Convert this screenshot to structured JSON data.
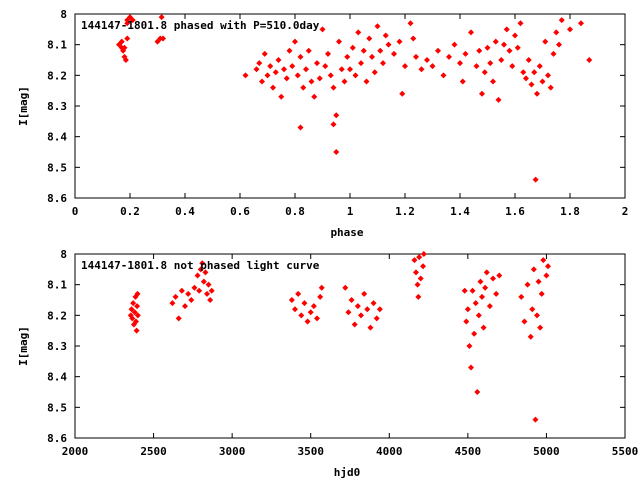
{
  "chart_data": [
    {
      "type": "scatter",
      "title": "144147-1801.8 phased with P=510.0day",
      "xlabel": "phase",
      "ylabel": "I[mag]",
      "xlim": [
        0,
        2
      ],
      "ylim": [
        8.6,
        8.0
      ],
      "y_inverted": true,
      "xticks": [
        "0",
        "0.2",
        "0.4",
        "0.6",
        "0.8",
        "1",
        "1.2",
        "1.4",
        "1.6",
        "1.8",
        "2"
      ],
      "yticks": [
        "8",
        "8.1",
        "8.2",
        "8.3",
        "8.4",
        "8.5",
        "8.6"
      ],
      "marker_color": "#ff0000",
      "grid": false,
      "series": [
        {
          "points": [
            [
              0.16,
              8.1
            ],
            [
              0.17,
              8.09
            ],
            [
              0.175,
              8.12
            ],
            [
              0.18,
              8.14
            ],
            [
              0.185,
              8.15
            ],
            [
              0.18,
              8.11
            ],
            [
              0.19,
              8.03
            ],
            [
              0.19,
              8.02
            ],
            [
              0.2,
              8.01
            ],
            [
              0.21,
              8.02
            ],
            [
              0.19,
              8.08
            ],
            [
              0.17,
              8.11
            ],
            [
              0.3,
              8.09
            ],
            [
              0.31,
              8.08
            ],
            [
              0.32,
              8.08
            ],
            [
              0.315,
              8.01
            ],
            [
              0.62,
              8.2
            ],
            [
              0.66,
              8.18
            ],
            [
              0.67,
              8.16
            ],
            [
              0.68,
              8.22
            ],
            [
              0.69,
              8.13
            ],
            [
              0.7,
              8.2
            ],
            [
              0.71,
              8.17
            ],
            [
              0.72,
              8.24
            ],
            [
              0.73,
              8.19
            ],
            [
              0.74,
              8.15
            ],
            [
              0.75,
              8.27
            ],
            [
              0.76,
              8.18
            ],
            [
              0.77,
              8.21
            ],
            [
              0.78,
              8.12
            ],
            [
              0.79,
              8.17
            ],
            [
              0.8,
              8.09
            ],
            [
              0.81,
              8.2
            ],
            [
              0.82,
              8.14
            ],
            [
              0.82,
              8.37
            ],
            [
              0.83,
              8.24
            ],
            [
              0.84,
              8.18
            ],
            [
              0.85,
              8.12
            ],
            [
              0.86,
              8.22
            ],
            [
              0.87,
              8.27
            ],
            [
              0.88,
              8.16
            ],
            [
              0.89,
              8.21
            ],
            [
              0.9,
              8.05
            ],
            [
              0.91,
              8.17
            ],
            [
              0.92,
              8.13
            ],
            [
              0.93,
              8.2
            ],
            [
              0.94,
              8.24
            ],
            [
              0.94,
              8.36
            ],
            [
              0.95,
              8.33
            ],
            [
              0.95,
              8.45
            ],
            [
              0.96,
              8.09
            ],
            [
              0.97,
              8.18
            ],
            [
              0.98,
              8.22
            ],
            [
              0.99,
              8.14
            ],
            [
              1.0,
              8.18
            ],
            [
              1.01,
              8.11
            ],
            [
              1.02,
              8.2
            ],
            [
              1.03,
              8.06
            ],
            [
              1.04,
              8.16
            ],
            [
              1.05,
              8.12
            ],
            [
              1.06,
              8.22
            ],
            [
              1.07,
              8.08
            ],
            [
              1.08,
              8.14
            ],
            [
              1.09,
              8.19
            ],
            [
              1.1,
              8.04
            ],
            [
              1.11,
              8.12
            ],
            [
              1.12,
              8.16
            ],
            [
              1.13,
              8.07
            ],
            [
              1.14,
              8.1
            ],
            [
              1.16,
              8.13
            ],
            [
              1.18,
              8.09
            ],
            [
              1.19,
              8.26
            ],
            [
              1.2,
              8.17
            ],
            [
              1.22,
              8.03
            ],
            [
              1.23,
              8.08
            ],
            [
              1.24,
              8.14
            ],
            [
              1.26,
              8.18
            ],
            [
              1.28,
              8.15
            ],
            [
              1.3,
              8.17
            ],
            [
              1.32,
              8.12
            ],
            [
              1.34,
              8.2
            ],
            [
              1.36,
              8.14
            ],
            [
              1.38,
              8.1
            ],
            [
              1.4,
              8.16
            ],
            [
              1.41,
              8.22
            ],
            [
              1.42,
              8.13
            ],
            [
              1.44,
              8.06
            ],
            [
              1.46,
              8.17
            ],
            [
              1.47,
              8.12
            ],
            [
              1.48,
              8.26
            ],
            [
              1.49,
              8.19
            ],
            [
              1.5,
              8.11
            ],
            [
              1.51,
              8.16
            ],
            [
              1.52,
              8.22
            ],
            [
              1.53,
              8.09
            ],
            [
              1.54,
              8.28
            ],
            [
              1.55,
              8.15
            ],
            [
              1.56,
              8.1
            ],
            [
              1.57,
              8.05
            ],
            [
              1.58,
              8.12
            ],
            [
              1.59,
              8.17
            ],
            [
              1.6,
              8.07
            ],
            [
              1.61,
              8.11
            ],
            [
              1.62,
              8.03
            ],
            [
              1.63,
              8.19
            ],
            [
              1.64,
              8.21
            ],
            [
              1.65,
              8.15
            ],
            [
              1.66,
              8.23
            ],
            [
              1.67,
              8.19
            ],
            [
              1.675,
              8.54
            ],
            [
              1.68,
              8.26
            ],
            [
              1.69,
              8.17
            ],
            [
              1.7,
              8.22
            ],
            [
              1.71,
              8.09
            ],
            [
              1.72,
              8.2
            ],
            [
              1.73,
              8.24
            ],
            [
              1.74,
              8.13
            ],
            [
              1.75,
              8.06
            ],
            [
              1.76,
              8.1
            ],
            [
              1.77,
              8.02
            ],
            [
              1.8,
              8.05
            ],
            [
              1.84,
              8.03
            ],
            [
              1.87,
              8.15
            ]
          ]
        }
      ]
    },
    {
      "type": "scatter",
      "title": "144147-1801.8 not phased light curve",
      "xlabel": "hjd0",
      "ylabel": "I[mag]",
      "xlim": [
        2000,
        5500
      ],
      "ylim": [
        8.6,
        8.0
      ],
      "y_inverted": true,
      "xticks": [
        "2000",
        "2500",
        "3000",
        "3500",
        "4000",
        "4500",
        "5000",
        "5500"
      ],
      "yticks": [
        "8",
        "8.1",
        "8.2",
        "8.3",
        "8.4",
        "8.5",
        "8.6"
      ],
      "marker_color": "#ff0000",
      "grid": false,
      "series": [
        {
          "points": [
            [
              2355,
              8.2
            ],
            [
              2360,
              8.18
            ],
            [
              2365,
              8.21
            ],
            [
              2370,
              8.16
            ],
            [
              2375,
              8.23
            ],
            [
              2380,
              8.19
            ],
            [
              2385,
              8.14
            ],
            [
              2388,
              8.22
            ],
            [
              2392,
              8.25
            ],
            [
              2395,
              8.17
            ],
            [
              2398,
              8.13
            ],
            [
              2400,
              8.2
            ],
            [
              2620,
              8.16
            ],
            [
              2640,
              8.14
            ],
            [
              2660,
              8.21
            ],
            [
              2680,
              8.12
            ],
            [
              2700,
              8.17
            ],
            [
              2720,
              8.13
            ],
            [
              2740,
              8.15
            ],
            [
              2760,
              8.11
            ],
            [
              2780,
              8.07
            ],
            [
              2790,
              8.12
            ],
            [
              2800,
              8.05
            ],
            [
              2810,
              8.03
            ],
            [
              2820,
              8.09
            ],
            [
              2830,
              8.06
            ],
            [
              2840,
              8.13
            ],
            [
              2850,
              8.1
            ],
            [
              2860,
              8.15
            ],
            [
              2870,
              8.12
            ],
            [
              3380,
              8.15
            ],
            [
              3400,
              8.18
            ],
            [
              3420,
              8.13
            ],
            [
              3440,
              8.2
            ],
            [
              3460,
              8.16
            ],
            [
              3480,
              8.22
            ],
            [
              3500,
              8.19
            ],
            [
              3520,
              8.17
            ],
            [
              3540,
              8.21
            ],
            [
              3560,
              8.14
            ],
            [
              3570,
              8.11
            ],
            [
              3720,
              8.11
            ],
            [
              3740,
              8.19
            ],
            [
              3760,
              8.15
            ],
            [
              3780,
              8.23
            ],
            [
              3800,
              8.17
            ],
            [
              3820,
              8.2
            ],
            [
              3840,
              8.13
            ],
            [
              3860,
              8.18
            ],
            [
              3880,
              8.24
            ],
            [
              3900,
              8.16
            ],
            [
              3920,
              8.21
            ],
            [
              3940,
              8.18
            ],
            [
              4160,
              8.02
            ],
            [
              4170,
              8.06
            ],
            [
              4180,
              8.1
            ],
            [
              4185,
              8.14
            ],
            [
              4190,
              8.01
            ],
            [
              4200,
              8.08
            ],
            [
              4215,
              8.04
            ],
            [
              4220,
              8.0
            ],
            [
              4480,
              8.12
            ],
            [
              4490,
              8.22
            ],
            [
              4500,
              8.18
            ],
            [
              4510,
              8.3
            ],
            [
              4520,
              8.37
            ],
            [
              4530,
              8.12
            ],
            [
              4540,
              8.26
            ],
            [
              4550,
              8.16
            ],
            [
              4560,
              8.45
            ],
            [
              4570,
              8.2
            ],
            [
              4580,
              8.09
            ],
            [
              4590,
              8.14
            ],
            [
              4600,
              8.24
            ],
            [
              4610,
              8.11
            ],
            [
              4620,
              8.06
            ],
            [
              4640,
              8.17
            ],
            [
              4660,
              8.08
            ],
            [
              4680,
              8.13
            ],
            [
              4700,
              8.07
            ],
            [
              4840,
              8.14
            ],
            [
              4860,
              8.22
            ],
            [
              4880,
              8.1
            ],
            [
              4900,
              8.27
            ],
            [
              4910,
              8.18
            ],
            [
              4920,
              8.05
            ],
            [
              4930,
              8.54
            ],
            [
              4940,
              8.2
            ],
            [
              4950,
              8.09
            ],
            [
              4960,
              8.24
            ],
            [
              4970,
              8.13
            ],
            [
              4980,
              8.02
            ],
            [
              5000,
              8.07
            ],
            [
              5010,
              8.04
            ]
          ]
        }
      ]
    }
  ]
}
